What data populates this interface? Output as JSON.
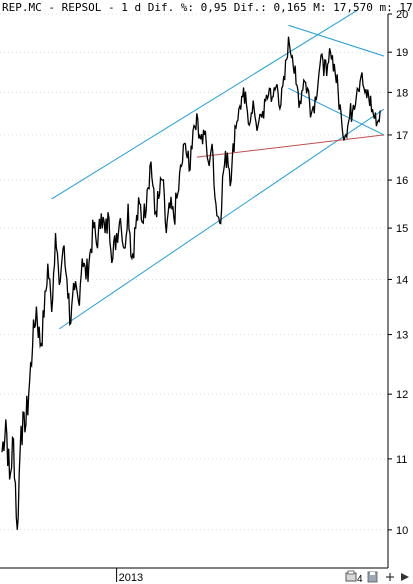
{
  "header": {
    "text": "REP.MC - REPSOL -  1 d Dif. %: 0,95 Dif.: 0,165 M: 17,570 m: 17"
  },
  "toolbar": {
    "icons": [
      "print-icon",
      "count-icon",
      "save-icon",
      "zoom-out-icon",
      "scroll-right-icon"
    ],
    "count_label": "4"
  },
  "colors": {
    "price": "#000000",
    "channel": "#1e9fd8",
    "support": "#c0504d",
    "grid": "#bfbfbf"
  },
  "chart_data": {
    "type": "line",
    "title": "REP.MC - REPSOL",
    "xlabel": "",
    "ylabel": "",
    "ylim": [
      9.5,
      20
    ],
    "y_ticks": [
      10,
      11,
      12,
      13,
      14,
      15,
      16,
      17,
      18,
      19,
      20
    ],
    "x_ticks": [
      {
        "label": "2013",
        "x": 30
      }
    ],
    "grid": true,
    "series": [
      {
        "values": [
          [
            0,
            11.1
          ],
          [
            1,
            11.6
          ],
          [
            2,
            10.7
          ],
          [
            3,
            11.3
          ],
          [
            4,
            10.0
          ],
          [
            5,
            11.5
          ],
          [
            6,
            11.4
          ],
          [
            7,
            12.0
          ],
          [
            8,
            12.8
          ],
          [
            9,
            13.5
          ],
          [
            10,
            12.8
          ],
          [
            11,
            13.3
          ],
          [
            12,
            14.3
          ],
          [
            13,
            13.4
          ],
          [
            14,
            14.9
          ],
          [
            15,
            13.9
          ],
          [
            16,
            14.6
          ],
          [
            17,
            14.0
          ],
          [
            18,
            13.2
          ],
          [
            19,
            13.8
          ],
          [
            20,
            13.6
          ],
          [
            21,
            14.4
          ],
          [
            22,
            14.0
          ],
          [
            23,
            14.5
          ],
          [
            24,
            15.0
          ],
          [
            25,
            14.6
          ],
          [
            26,
            15.3
          ],
          [
            27,
            14.9
          ],
          [
            28,
            15.2
          ],
          [
            29,
            14.4
          ],
          [
            30,
            14.9
          ],
          [
            31,
            15.2
          ],
          [
            32,
            14.6
          ],
          [
            33,
            15.5
          ],
          [
            34,
            14.4
          ],
          [
            35,
            15.0
          ],
          [
            36,
            15.5
          ],
          [
            37,
            15.1
          ],
          [
            38,
            15.8
          ],
          [
            39,
            16.4
          ],
          [
            40,
            15.3
          ],
          [
            41,
            15.6
          ],
          [
            42,
            16.0
          ],
          [
            43,
            14.9
          ],
          [
            44,
            15.4
          ],
          [
            45,
            15.2
          ],
          [
            46,
            15.7
          ],
          [
            47,
            16.3
          ],
          [
            48,
            16.8
          ],
          [
            49,
            16.2
          ],
          [
            50,
            17.1
          ],
          [
            51,
            17.5
          ],
          [
            52,
            16.9
          ],
          [
            53,
            17.0
          ],
          [
            54,
            16.4
          ],
          [
            55,
            16.8
          ],
          [
            56,
            15.5
          ],
          [
            57,
            15.1
          ],
          [
            58,
            16.2
          ],
          [
            59,
            16.6
          ],
          [
            60,
            16.0
          ],
          [
            61,
            17.2
          ],
          [
            62,
            17.6
          ],
          [
            63,
            17.9
          ],
          [
            64,
            17.7
          ],
          [
            65,
            17.3
          ],
          [
            66,
            17.6
          ],
          [
            67,
            17.2
          ],
          [
            68,
            17.4
          ],
          [
            69,
            17.8
          ],
          [
            70,
            18.1
          ],
          [
            71,
            17.9
          ],
          [
            72,
            18.2
          ],
          [
            73,
            17.7
          ],
          [
            74,
            18.3
          ],
          [
            75,
            19.4
          ],
          [
            76,
            18.9
          ],
          [
            77,
            18.2
          ],
          [
            78,
            17.8
          ],
          [
            79,
            18.3
          ],
          [
            80,
            18.1
          ],
          [
            81,
            17.5
          ],
          [
            82,
            17.9
          ],
          [
            83,
            18.5
          ],
          [
            84,
            18.8
          ],
          [
            85,
            18.4
          ],
          [
            86,
            19.0
          ],
          [
            87,
            18.7
          ],
          [
            88,
            18.0
          ],
          [
            89,
            17.2
          ],
          [
            90,
            17.0
          ],
          [
            91,
            17.4
          ],
          [
            92,
            17.7
          ],
          [
            93,
            18.1
          ],
          [
            94,
            18.4
          ],
          [
            95,
            18.0
          ],
          [
            96,
            17.9
          ],
          [
            97,
            17.6
          ],
          [
            98,
            17.2
          ],
          [
            99,
            17.57
          ]
        ]
      }
    ],
    "annotations": [
      {
        "type": "trendline",
        "color": "channel",
        "from": [
          13,
          15.6
        ],
        "to": [
          93,
          20.1
        ]
      },
      {
        "type": "trendline",
        "color": "channel",
        "from": [
          15,
          13.1
        ],
        "to": [
          100,
          17.6
        ]
      },
      {
        "type": "trendline",
        "color": "channel",
        "from": [
          75,
          19.7
        ],
        "to": [
          100,
          18.9
        ]
      },
      {
        "type": "trendline",
        "color": "channel",
        "from": [
          75,
          18.1
        ],
        "to": [
          100,
          17.0
        ]
      },
      {
        "type": "trendline",
        "color": "support",
        "from": [
          51,
          16.5
        ],
        "to": [
          100,
          17.0
        ]
      }
    ]
  }
}
